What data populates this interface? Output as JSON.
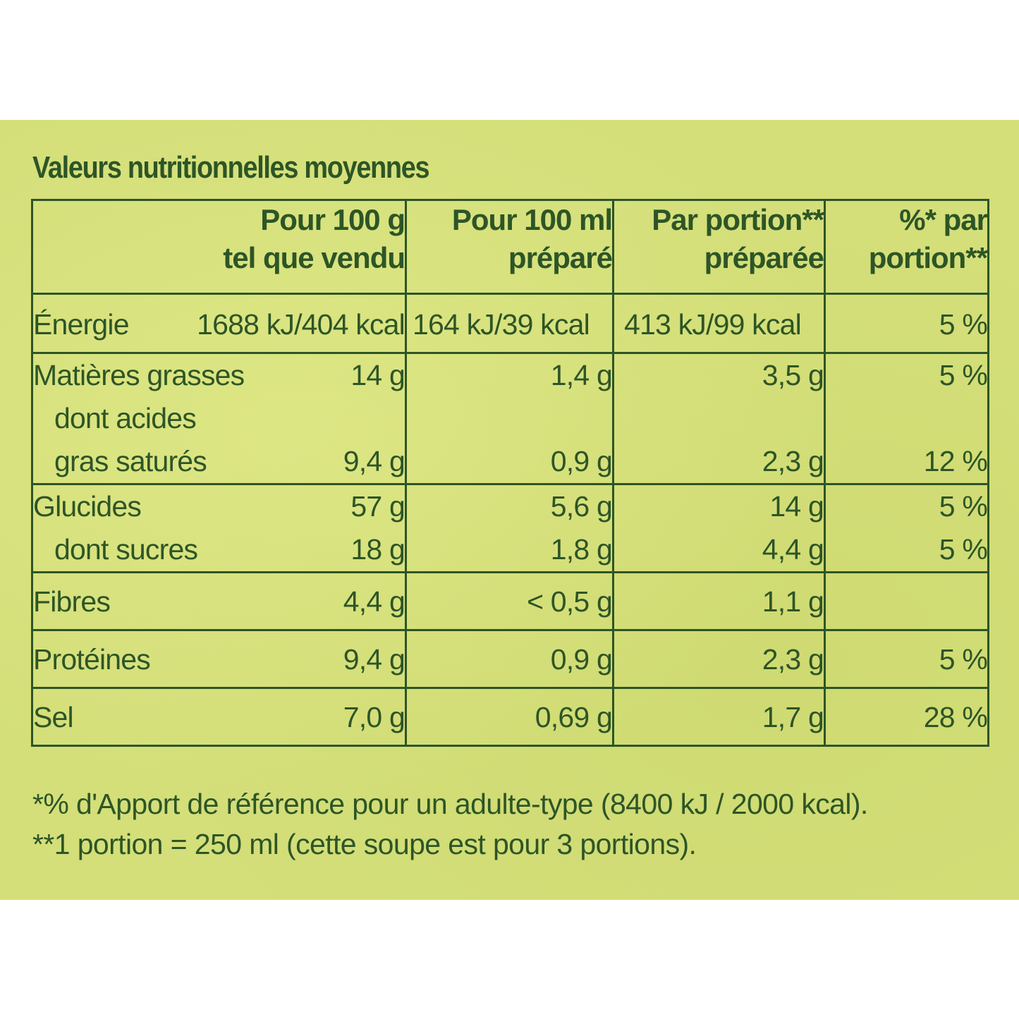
{
  "title": "Valeurs nutritionnelles moyennes",
  "headers": {
    "col1": [
      "Pour 100 g",
      "tel que vendu"
    ],
    "col2": [
      "Pour 100 ml",
      "préparé"
    ],
    "col3": [
      "Par portion**",
      "préparée"
    ],
    "col4": [
      "%* par",
      "portion**"
    ]
  },
  "rows": {
    "energie": {
      "label": "Énergie",
      "c1": "1688 kJ/404 kcal",
      "c2": "164 kJ/39 kcal",
      "c3": "413 kJ/99 kcal",
      "c4": "5 %"
    },
    "matieres": {
      "label": "Matières grasses",
      "c1": "14 g",
      "c2": "1,4 g",
      "c3": "3,5 g",
      "c4": "5 %"
    },
    "satures": {
      "label1": "dont acides",
      "label2": "gras saturés",
      "c1": "9,4 g",
      "c2": "0,9 g",
      "c3": "2,3 g",
      "c4": "12 %"
    },
    "glucides": {
      "label": "Glucides",
      "c1": "57 g",
      "c2": "5,6 g",
      "c3": "14 g",
      "c4": "5 %"
    },
    "sucres": {
      "label": "dont sucres",
      "c1": "18 g",
      "c2": "1,8 g",
      "c3": "4,4 g",
      "c4": "5 %"
    },
    "fibres": {
      "label": "Fibres",
      "c1": "4,4 g",
      "c2": "< 0,5 g",
      "c3": "1,1 g",
      "c4": ""
    },
    "proteines": {
      "label": "Protéines",
      "c1": "9,4 g",
      "c2": "0,9 g",
      "c3": "2,3 g",
      "c4": "5 %"
    },
    "sel": {
      "label": "Sel",
      "c1": "7,0 g",
      "c2": "0,69 g",
      "c3": "1,7 g",
      "c4": "28 %"
    }
  },
  "footnotes": [
    "*% d'Apport de référence pour un adulte-type (8400 kJ / 2000 kcal).",
    "**1 portion = 250 ml (cette soupe est pour 3 portions)."
  ],
  "colors": {
    "text": "#2d5526",
    "background": "#d4df7a"
  }
}
